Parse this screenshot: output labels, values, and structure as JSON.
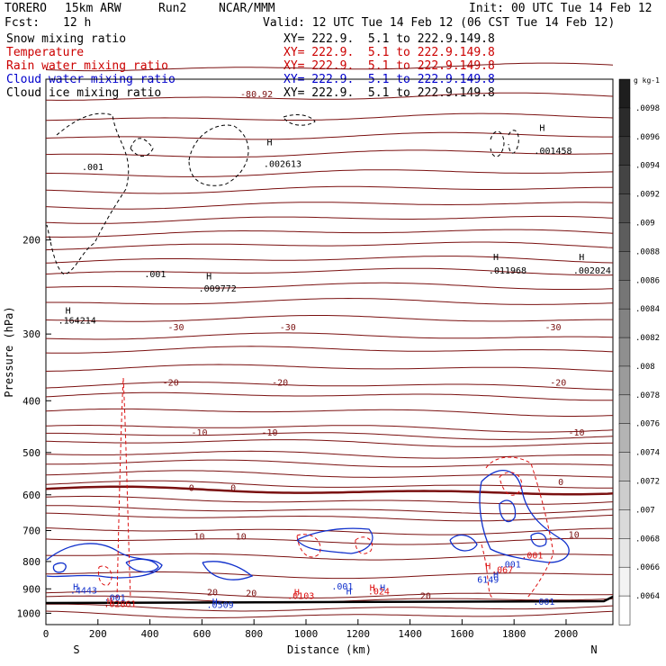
{
  "header": {
    "model": "TORERO",
    "resolution": "15km ARW",
    "run": "Run2",
    "org": "NCAR/MMM",
    "init": "Init: 00 UTC Tue 14 Feb 12",
    "fcst_label": "Fcst:",
    "fcst_value": "12 h",
    "valid": "Valid: 12 UTC Tue 14 Feb 12 (06 CST Tue 14 Feb 12)"
  },
  "fields": [
    {
      "name": "Snow mixing ratio",
      "xy": "XY= 222.9.  5.1 to 222.9.149.8",
      "color": "#000000"
    },
    {
      "name": "Temperature",
      "xy": "XY= 222.9.  5.1 to 222.9.149.8",
      "color": "#cc0000"
    },
    {
      "name": "Rain water mixing ratio",
      "xy": "XY= 222.9.  5.1 to 222.9.149.8",
      "color": "#cc0000"
    },
    {
      "name": "Cloud water mixing ratio",
      "xy": "XY= 222.9.  5.1 to 222.9.149.8",
      "color": "#0000cc"
    },
    {
      "name": "Cloud ice mixing ratio",
      "xy": "XY= 222.9.  5.1 to 222.9.149.8",
      "color": "#000000"
    }
  ],
  "chart_data": {
    "type": "cross-section",
    "xlabel": "Distance (km)",
    "ylabel": "Pressure (hPa)",
    "x_ticks": [
      0,
      200,
      400,
      600,
      800,
      1000,
      1200,
      1400,
      1600,
      1800,
      2000
    ],
    "xlim": [
      0,
      2180
    ],
    "y_ticks": [
      200,
      300,
      400,
      500,
      600,
      700,
      800,
      900,
      1000
    ],
    "ylim": [
      1050,
      100
    ],
    "y_scale": "log",
    "x_end_labels": {
      "left": "S",
      "right": "N"
    },
    "colorbar": {
      "unit": "g kg-1",
      "labels": [
        ".0098",
        ".0096",
        ".0094",
        ".0092",
        ".009",
        ".0088",
        ".0086",
        ".0084",
        ".0082",
        ".008",
        ".0078",
        ".0076",
        ".0074",
        ".0072",
        ".007",
        ".0068",
        ".0066",
        ".0064"
      ]
    },
    "temperature_labels": [
      {
        "text": "-80.92",
        "x": 810,
        "p": 108
      },
      {
        "text": "-30",
        "x": 500,
        "p": 295
      },
      {
        "text": "-30",
        "x": 930,
        "p": 295
      },
      {
        "text": "-30",
        "x": 1950,
        "p": 295
      },
      {
        "text": "-20",
        "x": 480,
        "p": 375
      },
      {
        "text": "-20",
        "x": 900,
        "p": 375
      },
      {
        "text": "-20",
        "x": 1970,
        "p": 375
      },
      {
        "text": "-10",
        "x": 590,
        "p": 465
      },
      {
        "text": "-10",
        "x": 860,
        "p": 465
      },
      {
        "text": "-10",
        "x": 2040,
        "p": 465
      },
      {
        "text": "0",
        "x": 560,
        "p": 590
      },
      {
        "text": "0",
        "x": 720,
        "p": 590
      },
      {
        "text": "0",
        "x": 1980,
        "p": 575
      },
      {
        "text": "10",
        "x": 590,
        "p": 728
      },
      {
        "text": "10",
        "x": 750,
        "p": 728
      },
      {
        "text": "10",
        "x": 2030,
        "p": 722
      },
      {
        "text": "20",
        "x": 640,
        "p": 925
      },
      {
        "text": "20",
        "x": 790,
        "p": 930
      },
      {
        "text": "20",
        "x": 1460,
        "p": 940
      }
    ],
    "snow_labels": [
      {
        "text": ".001",
        "x": 180,
        "p": 148
      },
      {
        "text": ".001",
        "x": 420,
        "p": 235
      },
      {
        "text": "H",
        "x": 85,
        "p": 275
      },
      {
        "text": ".164214",
        "x": 120,
        "p": 287
      },
      {
        "text": "H",
        "x": 627,
        "p": 237
      },
      {
        "text": ".009772",
        "x": 660,
        "p": 250
      },
      {
        "text": "H",
        "x": 860,
        "p": 133
      },
      {
        "text": ".002613",
        "x": 910,
        "p": 146
      },
      {
        "text": "H",
        "x": 1908,
        "p": 125
      },
      {
        "text": ".001458",
        "x": 1950,
        "p": 138
      },
      {
        "text": "H",
        "x": 1730,
        "p": 218
      },
      {
        "text": ".011968",
        "x": 1775,
        "p": 231
      },
      {
        "text": "H",
        "x": 2060,
        "p": 218
      },
      {
        "text": ".002024",
        "x": 2100,
        "p": 231
      }
    ],
    "cloudwater_labels": [
      {
        "text": "H",
        "x": 115,
        "p": 905
      },
      {
        "text": ".4443",
        "x": 145,
        "p": 918
      },
      {
        "text": ".001",
        "x": 265,
        "p": 948
      },
      {
        "text": "H",
        "x": 650,
        "p": 965
      },
      {
        "text": ".0509",
        "x": 670,
        "p": 978
      },
      {
        "text": ".001",
        "x": 1140,
        "p": 903
      },
      {
        "text": "H",
        "x": 1165,
        "p": 922
      },
      {
        "text": "H",
        "x": 1295,
        "p": 908
      },
      {
        "text": ".001",
        "x": 1785,
        "p": 820
      },
      {
        "text": "H",
        "x": 1730,
        "p": 858
      },
      {
        "text": "6149",
        "x": 1700,
        "p": 876
      },
      {
        "text": ".001",
        "x": 1915,
        "p": 965
      }
    ],
    "rain_labels": [
      {
        "text": ".001",
        "x": 1870,
        "p": 790
      },
      {
        "text": "H",
        "x": 1700,
        "p": 827
      },
      {
        "text": ".067",
        "x": 1755,
        "p": 840
      },
      {
        "text": "H",
        "x": 1255,
        "p": 908
      },
      {
        "text": ".024",
        "x": 1280,
        "p": 922
      },
      {
        "text": "H",
        "x": 965,
        "p": 925
      },
      {
        "text": ".0103",
        "x": 980,
        "p": 940
      },
      {
        "text": "H",
        "x": 245,
        "p": 960
      },
      {
        "text": ".02861",
        "x": 285,
        "p": 973
      }
    ]
  }
}
